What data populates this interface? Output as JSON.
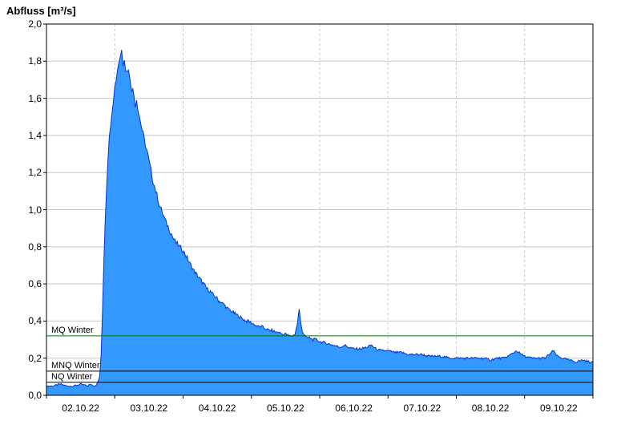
{
  "chart_data": {
    "type": "area",
    "title": "Abfluss [m³/s]",
    "xlabel": "",
    "ylabel": "Abfluss [m³/s]",
    "ylim": [
      0,
      2.0
    ],
    "x_range": [
      0,
      8
    ],
    "grid": true,
    "legend": "none",
    "x_tick_labels": [
      "02.10.22",
      "03.10.22",
      "04.10.22",
      "05.10.22",
      "06.10.22",
      "07.10.22",
      "08.10.22",
      "09.10.22"
    ],
    "y_tick_labels": [
      "0,0",
      "0,2",
      "0,4",
      "0,6",
      "0,8",
      "1,0",
      "1,2",
      "1,4",
      "1,6",
      "1,8",
      "2,0"
    ],
    "y_tick_values": [
      0,
      0.2,
      0.4,
      0.6,
      0.8,
      1.0,
      1.2,
      1.4,
      1.6,
      1.8,
      2.0
    ],
    "reference_lines": [
      {
        "label": "MQ Winter",
        "value": 0.32,
        "color": "#007700"
      },
      {
        "label": "MNQ Winter",
        "value": 0.13,
        "color": "#000000"
      },
      {
        "label": "NQ Winter",
        "value": 0.07,
        "color": "#000000"
      }
    ],
    "colors": {
      "fill": "#3399FF",
      "line": "#0033CC",
      "grid": "#C8C8C8",
      "axis": "#000000"
    },
    "series": [
      {
        "name": "Abfluss",
        "points": [
          [
            0.0,
            0.05
          ],
          [
            0.1,
            0.05
          ],
          [
            0.2,
            0.06
          ],
          [
            0.3,
            0.05
          ],
          [
            0.4,
            0.05
          ],
          [
            0.5,
            0.06
          ],
          [
            0.6,
            0.05
          ],
          [
            0.65,
            0.06
          ],
          [
            0.7,
            0.05
          ],
          [
            0.74,
            0.06
          ],
          [
            0.78,
            0.1
          ],
          [
            0.8,
            0.22
          ],
          [
            0.82,
            0.45
          ],
          [
            0.84,
            0.72
          ],
          [
            0.86,
            0.95
          ],
          [
            0.88,
            1.12
          ],
          [
            0.9,
            1.28
          ],
          [
            0.92,
            1.38
          ],
          [
            0.94,
            1.47
          ],
          [
            0.96,
            1.54
          ],
          [
            0.98,
            1.6
          ],
          [
            1.0,
            1.66
          ],
          [
            1.02,
            1.71
          ],
          [
            1.04,
            1.76
          ],
          [
            1.06,
            1.8
          ],
          [
            1.08,
            1.83
          ],
          [
            1.1,
            1.86
          ],
          [
            1.12,
            1.79
          ],
          [
            1.14,
            1.83
          ],
          [
            1.16,
            1.76
          ],
          [
            1.18,
            1.74
          ],
          [
            1.2,
            1.77
          ],
          [
            1.22,
            1.7
          ],
          [
            1.25,
            1.66
          ],
          [
            1.28,
            1.62
          ],
          [
            1.3,
            1.57
          ],
          [
            1.32,
            1.6
          ],
          [
            1.35,
            1.52
          ],
          [
            1.38,
            1.47
          ],
          [
            1.4,
            1.43
          ],
          [
            1.43,
            1.38
          ],
          [
            1.45,
            1.35
          ],
          [
            1.48,
            1.3
          ],
          [
            1.5,
            1.26
          ],
          [
            1.53,
            1.21
          ],
          [
            1.55,
            1.17
          ],
          [
            1.58,
            1.13
          ],
          [
            1.6,
            1.1
          ],
          [
            1.63,
            1.06
          ],
          [
            1.65,
            1.03
          ],
          [
            1.68,
            1.0
          ],
          [
            1.7,
            0.98
          ],
          [
            1.73,
            0.95
          ],
          [
            1.75,
            0.93
          ],
          [
            1.78,
            0.91
          ],
          [
            1.8,
            0.89
          ],
          [
            1.83,
            0.87
          ],
          [
            1.85,
            0.85
          ],
          [
            1.88,
            0.83
          ],
          [
            1.9,
            0.82
          ],
          [
            1.93,
            0.81
          ],
          [
            1.95,
            0.8
          ],
          [
            1.98,
            0.79
          ],
          [
            2.0,
            0.78
          ],
          [
            2.03,
            0.76
          ],
          [
            2.06,
            0.74
          ],
          [
            2.1,
            0.71
          ],
          [
            2.13,
            0.69
          ],
          [
            2.16,
            0.67
          ],
          [
            2.2,
            0.65
          ],
          [
            2.24,
            0.63
          ],
          [
            2.28,
            0.61
          ],
          [
            2.32,
            0.59
          ],
          [
            2.36,
            0.57
          ],
          [
            2.4,
            0.56
          ],
          [
            2.44,
            0.54
          ],
          [
            2.48,
            0.53
          ],
          [
            2.52,
            0.51
          ],
          [
            2.56,
            0.5
          ],
          [
            2.6,
            0.49
          ],
          [
            2.64,
            0.47
          ],
          [
            2.68,
            0.46
          ],
          [
            2.72,
            0.45
          ],
          [
            2.76,
            0.44
          ],
          [
            2.8,
            0.43
          ],
          [
            2.84,
            0.42
          ],
          [
            2.88,
            0.41
          ],
          [
            2.92,
            0.4
          ],
          [
            2.96,
            0.4
          ],
          [
            3.0,
            0.39
          ],
          [
            3.05,
            0.38
          ],
          [
            3.1,
            0.37
          ],
          [
            3.15,
            0.37
          ],
          [
            3.2,
            0.36
          ],
          [
            3.25,
            0.35
          ],
          [
            3.3,
            0.35
          ],
          [
            3.35,
            0.34
          ],
          [
            3.4,
            0.34
          ],
          [
            3.45,
            0.33
          ],
          [
            3.5,
            0.33
          ],
          [
            3.55,
            0.32
          ],
          [
            3.6,
            0.32
          ],
          [
            3.64,
            0.33
          ],
          [
            3.67,
            0.38
          ],
          [
            3.7,
            0.46
          ],
          [
            3.72,
            0.4
          ],
          [
            3.75,
            0.34
          ],
          [
            3.8,
            0.31
          ],
          [
            3.85,
            0.31
          ],
          [
            3.9,
            0.3
          ],
          [
            3.95,
            0.3
          ],
          [
            4.0,
            0.29
          ],
          [
            4.1,
            0.28
          ],
          [
            4.2,
            0.27
          ],
          [
            4.3,
            0.26
          ],
          [
            4.36,
            0.27
          ],
          [
            4.42,
            0.26
          ],
          [
            4.5,
            0.25
          ],
          [
            4.6,
            0.25
          ],
          [
            4.7,
            0.26
          ],
          [
            4.76,
            0.27
          ],
          [
            4.82,
            0.25
          ],
          [
            4.9,
            0.24
          ],
          [
            5.0,
            0.24
          ],
          [
            5.1,
            0.23
          ],
          [
            5.2,
            0.23
          ],
          [
            5.3,
            0.22
          ],
          [
            5.4,
            0.22
          ],
          [
            5.5,
            0.22
          ],
          [
            5.6,
            0.21
          ],
          [
            5.7,
            0.21
          ],
          [
            5.8,
            0.21
          ],
          [
            5.9,
            0.2
          ],
          [
            6.0,
            0.2
          ],
          [
            6.1,
            0.2
          ],
          [
            6.2,
            0.2
          ],
          [
            6.3,
            0.2
          ],
          [
            6.4,
            0.2
          ],
          [
            6.5,
            0.19
          ],
          [
            6.6,
            0.2
          ],
          [
            6.7,
            0.2
          ],
          [
            6.8,
            0.22
          ],
          [
            6.88,
            0.24
          ],
          [
            6.95,
            0.22
          ],
          [
            7.0,
            0.21
          ],
          [
            7.1,
            0.2
          ],
          [
            7.2,
            0.2
          ],
          [
            7.3,
            0.2
          ],
          [
            7.36,
            0.22
          ],
          [
            7.42,
            0.24
          ],
          [
            7.48,
            0.21
          ],
          [
            7.55,
            0.2
          ],
          [
            7.65,
            0.19
          ],
          [
            7.75,
            0.18
          ],
          [
            7.85,
            0.19
          ],
          [
            7.95,
            0.18
          ],
          [
            8.0,
            0.18
          ]
        ]
      }
    ]
  }
}
